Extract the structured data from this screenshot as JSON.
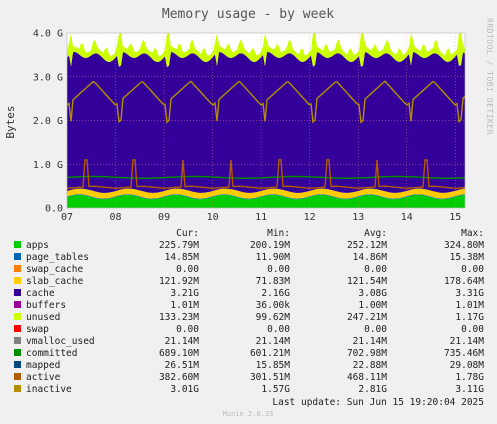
{
  "chart_data": {
    "type": "area",
    "title": "Memory usage - by week",
    "ylabel": "Bytes",
    "side_label": "RRDTOOL / TOBI OETIKER",
    "ylim": [
      0,
      4.0
    ],
    "y_unit": "G",
    "y_ticks": [
      "0.0",
      "1.0 G",
      "2.0 G",
      "3.0 G",
      "4.0 G"
    ],
    "x_ticks": [
      "07",
      "08",
      "09",
      "10",
      "11",
      "12",
      "13",
      "14",
      "15"
    ],
    "grid": true,
    "header": {
      "cur": "Cur:",
      "min": "Min:",
      "avg": "Avg:",
      "max": "Max:"
    },
    "series": [
      {
        "name": "apps",
        "color": "#00cc00",
        "cur": "225.79M",
        "min": "200.19M",
        "avg": "252.12M",
        "max": "324.80M"
      },
      {
        "name": "page_tables",
        "color": "#0066b3",
        "cur": "14.85M",
        "min": "11.90M",
        "avg": "14.86M",
        "max": "15.38M"
      },
      {
        "name": "swap_cache",
        "color": "#ff8000",
        "cur": "0.00",
        "min": "0.00",
        "avg": "0.00",
        "max": "0.00"
      },
      {
        "name": "slab_cache",
        "color": "#ffcc00",
        "cur": "121.92M",
        "min": "71.83M",
        "avg": "121.54M",
        "max": "178.64M"
      },
      {
        "name": "cache",
        "color": "#330099",
        "cur": "3.21G",
        "min": "2.16G",
        "avg": "3.08G",
        "max": "3.31G"
      },
      {
        "name": "buffers",
        "color": "#990099",
        "cur": "1.01M",
        "min": "36.00k",
        "avg": "1.00M",
        "max": "1.01M"
      },
      {
        "name": "unused",
        "color": "#ccff00",
        "cur": "133.23M",
        "min": "99.62M",
        "avg": "247.21M",
        "max": "1.17G"
      },
      {
        "name": "swap",
        "color": "#ff0000",
        "cur": "0.00",
        "min": "0.00",
        "avg": "0.00",
        "max": "0.00"
      },
      {
        "name": "vmalloc_used",
        "color": "#808080",
        "cur": "21.14M",
        "min": "21.14M",
        "avg": "21.14M",
        "max": "21.14M"
      },
      {
        "name": "committed",
        "color": "#008f00",
        "cur": "689.10M",
        "min": "601.21M",
        "avg": "702.98M",
        "max": "735.46M"
      },
      {
        "name": "mapped",
        "color": "#00487d",
        "cur": "26.51M",
        "min": "15.85M",
        "avg": "22.88M",
        "max": "29.08M"
      },
      {
        "name": "active",
        "color": "#b35a00",
        "cur": "382.60M",
        "min": "301.51M",
        "avg": "468.11M",
        "max": "1.78G"
      },
      {
        "name": "inactive",
        "color": "#b38f00",
        "cur": "3.01G",
        "min": "1.57G",
        "avg": "2.81G",
        "max": "3.11G"
      }
    ],
    "last_update": "Last update:  Sun Jun 15 19:20:04 2025",
    "version": "Munin 2.0.33"
  }
}
